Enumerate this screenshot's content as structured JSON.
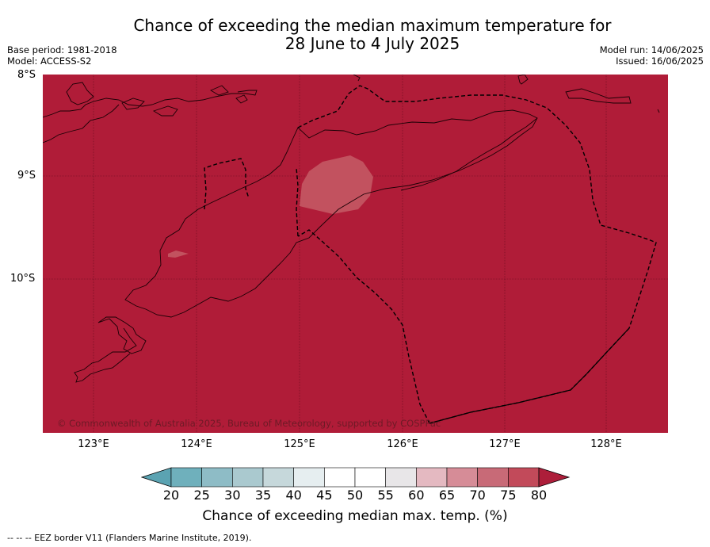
{
  "title_line1": "Chance of exceeding the median maximum temperature for",
  "title_line2": "28 June to 4 July 2025",
  "base_period": "Base period: 1981-2018",
  "model": "Model: ACCESS-S2",
  "model_run": "Model run: 14/06/2025",
  "issued": "Issued: 16/06/2025",
  "lat_labels": [
    "8°S",
    "9°S",
    "10°S"
  ],
  "lon_labels": [
    "123°E",
    "124°E",
    "125°E",
    "126°E",
    "127°E",
    "128°E"
  ],
  "copyright": "© Commonwealth of Australia 2025, Bureau of Meteorology, supported by COSPPac",
  "colorbar": {
    "ticks": [
      "20",
      "25",
      "30",
      "35",
      "40",
      "45",
      "50",
      "55",
      "60",
      "65",
      "70",
      "75",
      "80"
    ],
    "colors": [
      "#5ba3b2",
      "#6fb0bc",
      "#8ebcc6",
      "#aac9cf",
      "#c6d8db",
      "#e6eef0",
      "#ffffff",
      "#ffffff",
      "#e8e6e8",
      "#e4b9c1",
      "#d68c97",
      "#c86a77",
      "#c24a5a",
      "#ad1e3a"
    ],
    "label": "Chance of exceeding median max. temp. (%)"
  },
  "footer": "--  --  -- EEZ border V11 (Flanders Marine Institute, 2019).",
  "map_colors": {
    "dominant": "#b01c38",
    "light_patch": "#c2525f"
  }
}
